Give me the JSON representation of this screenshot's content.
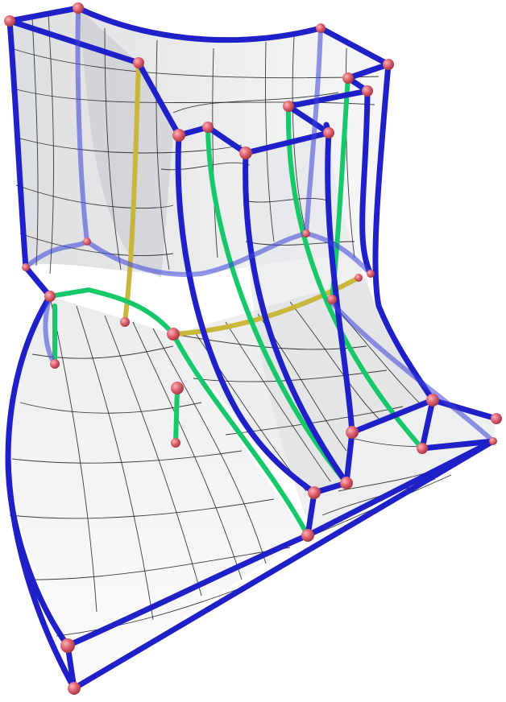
{
  "figure": {
    "description_visible_text": "",
    "palette": {
      "background": "#ffffff",
      "surface_fill": "#d9d9d9",
      "surface_shade": "#bfc3c7",
      "mesh_line": "#1a1a1a",
      "edge_primary": "#1f20c8",
      "edge_secondary": "#17c86a",
      "edge_tertiary": "#c8b73a",
      "vertex": "#e0606e",
      "vertex_highlight": "#f6b5bb"
    }
  }
}
